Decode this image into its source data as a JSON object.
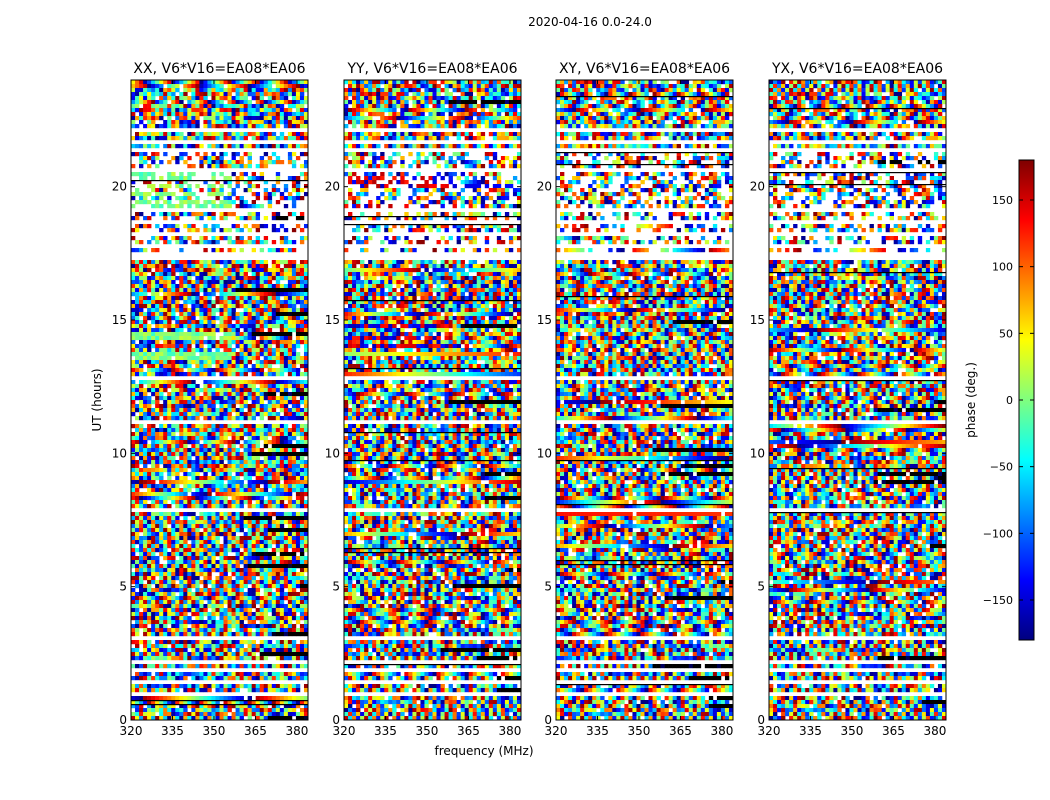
{
  "figure_title": "2020-04-16 0.0-24.0",
  "chart_data": {
    "type": "heatmap",
    "title": "2020-04-16 0.0-24.0",
    "xlabel": "frequency (MHz)",
    "ylabel": "UT (hours)",
    "xlim": [
      320,
      384
    ],
    "ylim": [
      0,
      24
    ],
    "xticks": [
      320,
      335,
      350,
      365,
      380
    ],
    "yticks": [
      0,
      5,
      10,
      15,
      20
    ],
    "colorbar": {
      "label": "phase (deg.)",
      "range": [
        -180,
        180
      ],
      "ticks": [
        -150,
        -100,
        -50,
        0,
        50,
        100,
        150
      ],
      "tick_labels": [
        "−150",
        "−100",
        "−50",
        "0",
        "50",
        "100",
        "150"
      ],
      "colormap": "jet",
      "colors": [
        "#00007f",
        "#0000ff",
        "#007fff",
        "#00ffff",
        "#7fff7f",
        "#ffff00",
        "#ff7f00",
        "#ff0000",
        "#7f0000"
      ]
    },
    "panels": [
      {
        "title": "XX, V6*V16=EA08*EA06",
        "pol": "XX"
      },
      {
        "title": "YY, V6*V16=EA08*EA06",
        "pol": "YY"
      },
      {
        "title": "XY, V6*V16=EA08*EA06",
        "pol": "XY"
      },
      {
        "title": "YX, V6*V16=EA08*EA06",
        "pol": "YX"
      }
    ],
    "flagged_ut_ranges": [
      [
        0.9,
        1.05
      ],
      [
        1.3,
        1.5
      ],
      [
        1.75,
        1.95
      ],
      [
        2.1,
        2.25
      ],
      [
        2.95,
        3.15
      ],
      [
        7.75,
        7.95
      ],
      [
        8.05,
        8.15
      ],
      [
        11.05,
        11.2
      ],
      [
        12.75,
        12.9
      ],
      [
        17.3,
        17.55
      ],
      [
        17.65,
        17.8
      ],
      [
        18.1,
        18.25
      ],
      [
        18.55,
        18.75
      ],
      [
        19.0,
        19.2
      ],
      [
        20.55,
        20.75
      ],
      [
        21.25,
        21.45
      ],
      [
        21.6,
        21.75
      ],
      [
        22.05,
        22.25
      ]
    ]
  }
}
